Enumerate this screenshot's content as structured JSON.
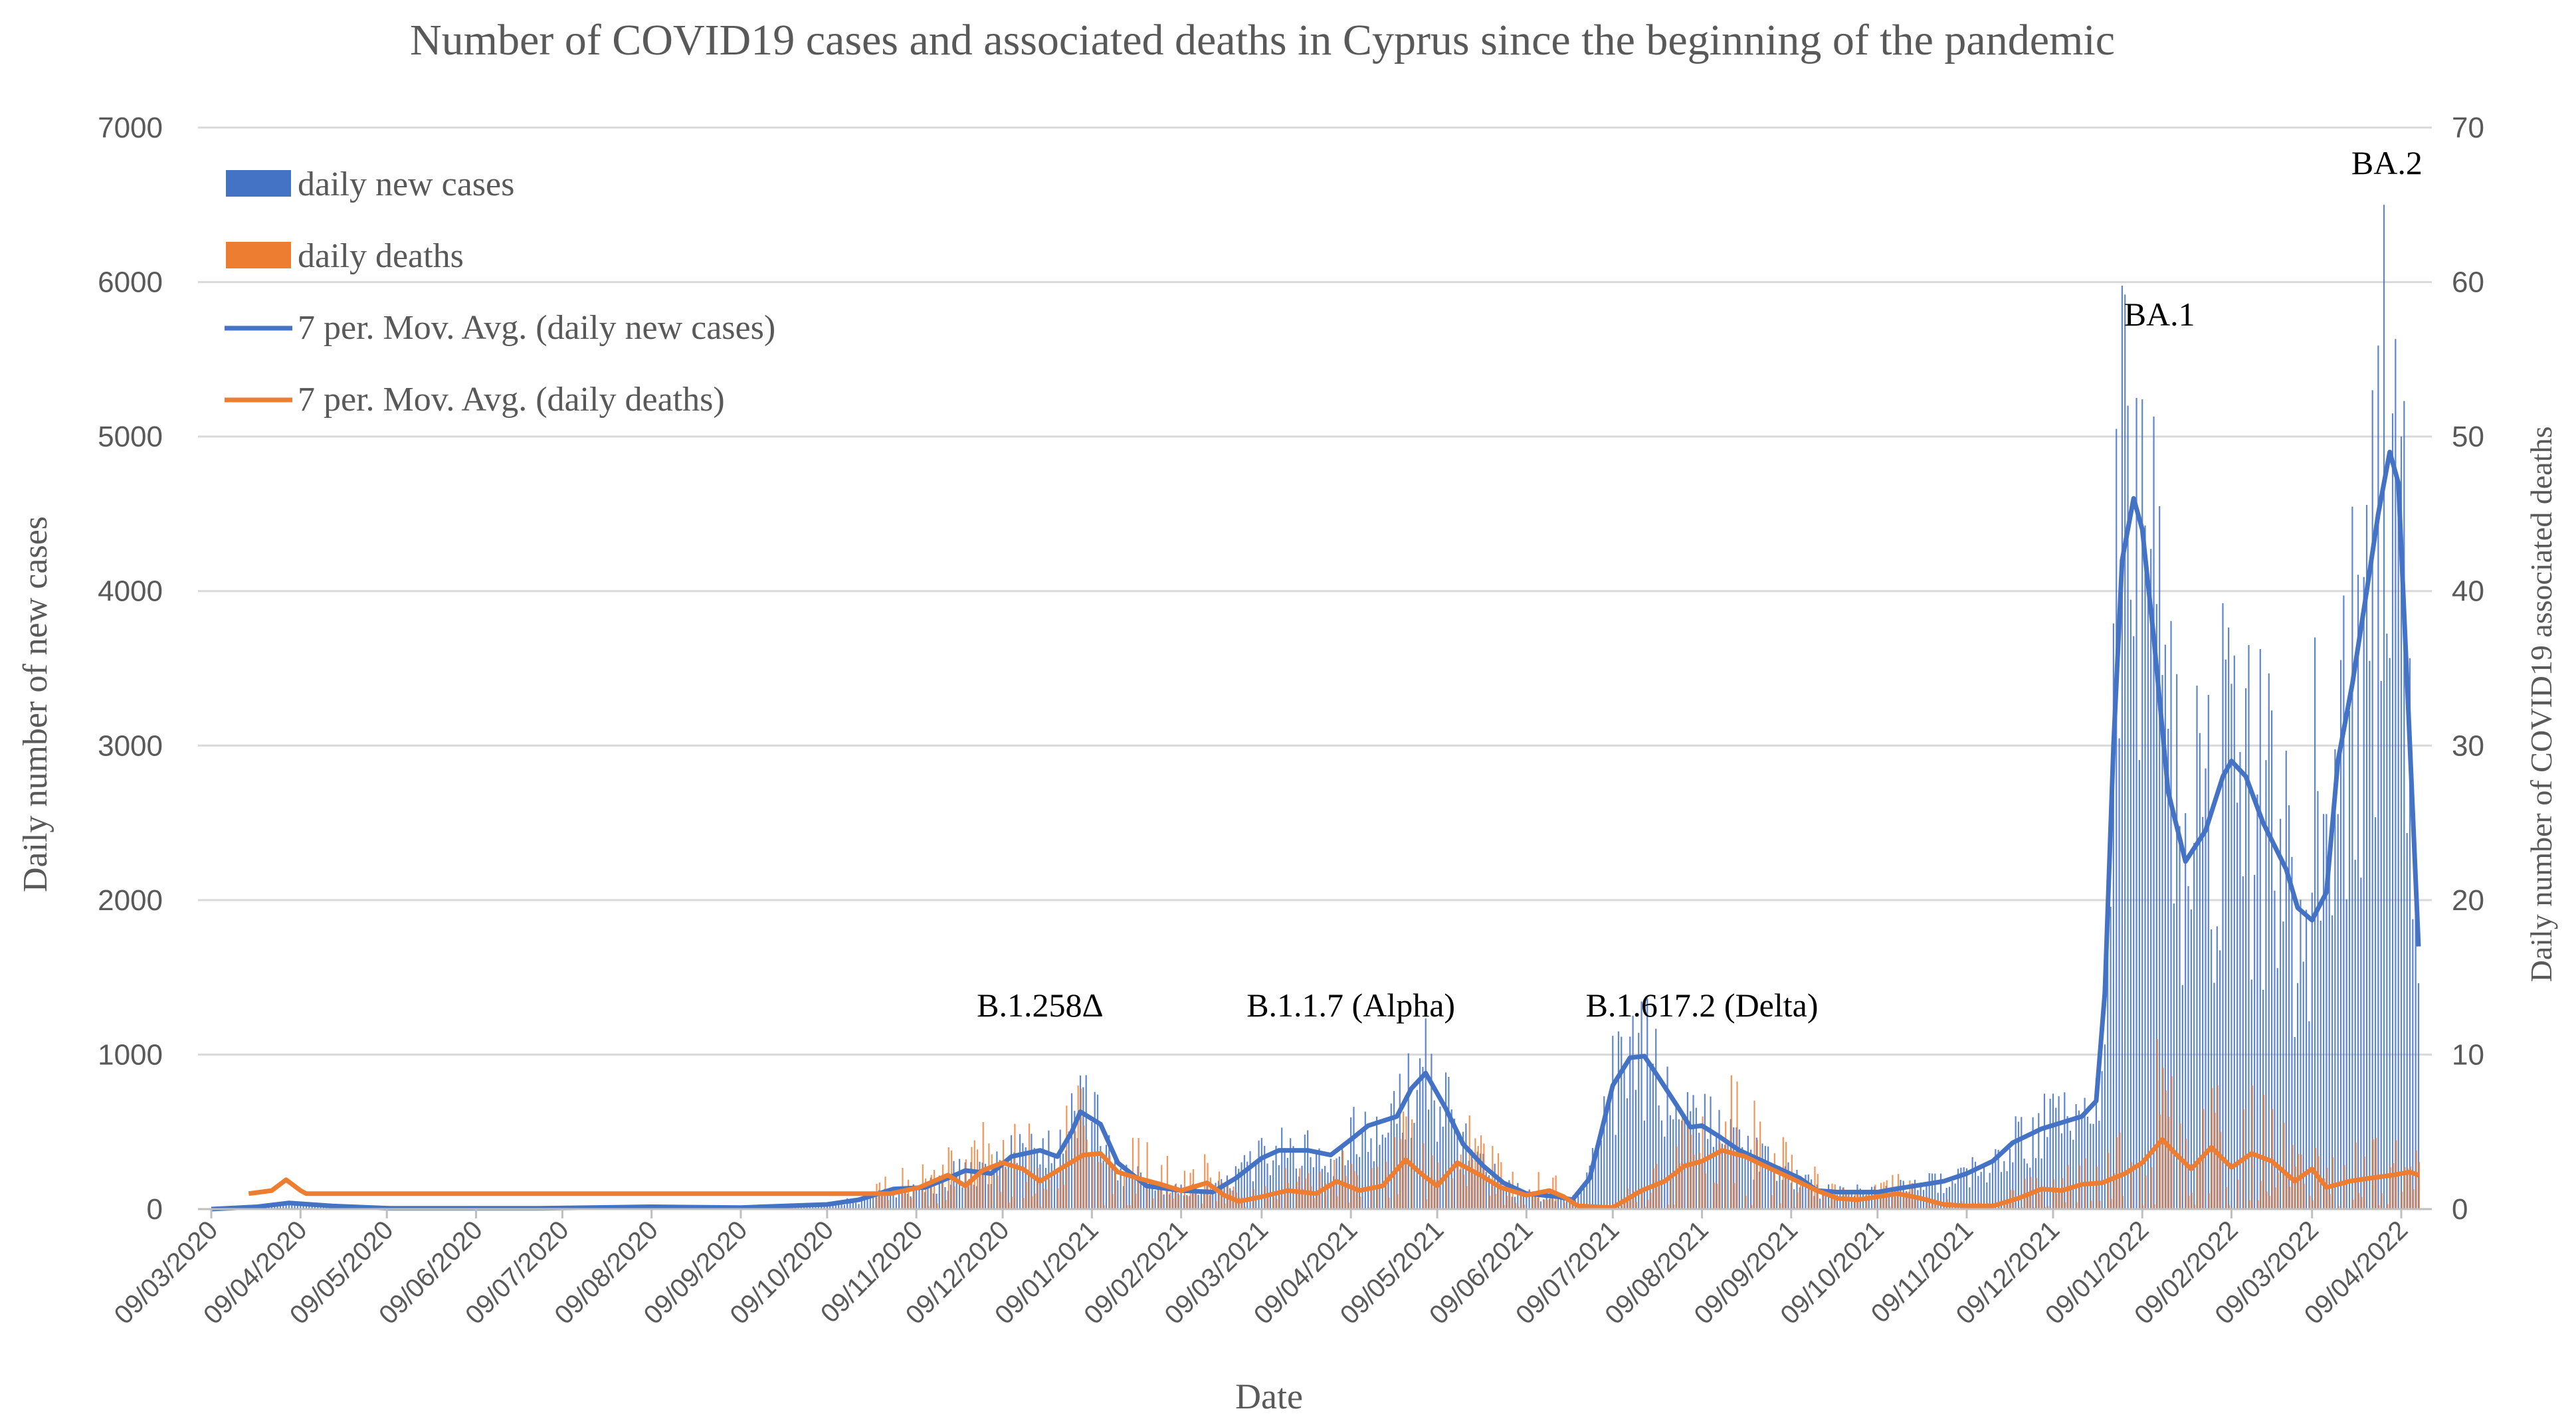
{
  "chart_data": {
    "type": "bar+line",
    "title": "Number of COVID19 cases and associated deaths in Cyprus since the beginning of the pandemic",
    "xlabel": "Date",
    "ylabel_left": "Daily number of new cases",
    "ylabel_right": "Daily number of COVID19 associated deaths",
    "ylim_left": [
      0,
      7000
    ],
    "ylim_right": [
      0,
      70
    ],
    "yticks_left": [
      "0",
      "1000",
      "2000",
      "3000",
      "4000",
      "5000",
      "6000",
      "7000"
    ],
    "yticks_right": [
      "0",
      "10",
      "20",
      "30",
      "40",
      "50",
      "60",
      "70"
    ],
    "date_start": "2020-03-09",
    "date_end": "2022-04-15",
    "gridlines": true,
    "legend_position": "top-left",
    "colors": {
      "cases": "#4472C4",
      "deaths": "#ED7D31",
      "grid": "#D9D9D9",
      "text": "#595959"
    },
    "legend": [
      {
        "label": "daily new cases",
        "kind": "bar",
        "series": "cases"
      },
      {
        "label": "daily deaths",
        "kind": "bar",
        "series": "deaths"
      },
      {
        "label": "7 per. Mov. Avg. (daily new cases)",
        "kind": "line",
        "series": "cases"
      },
      {
        "label": "7 per. Mov. Avg. (daily deaths)",
        "kind": "line",
        "series": "deaths"
      }
    ],
    "x_ticks": [
      "09/03/2020",
      "09/04/2020",
      "09/05/2020",
      "09/06/2020",
      "09/07/2020",
      "09/08/2020",
      "09/09/2020",
      "09/10/2020",
      "09/11/2020",
      "09/12/2020",
      "09/01/2021",
      "09/02/2021",
      "09/03/2021",
      "09/04/2021",
      "09/05/2021",
      "09/06/2021",
      "09/07/2021",
      "09/08/2021",
      "09/09/2021",
      "09/10/2021",
      "09/11/2021",
      "09/12/2021",
      "09/01/2022",
      "09/02/2022",
      "09/03/2022",
      "09/04/2022"
    ],
    "series_cases_ma": {
      "name": "7 per. Mov. Avg. (daily new cases)",
      "points": [
        [
          "2020-03-09",
          0
        ],
        [
          "2020-03-25",
          15
        ],
        [
          "2020-04-05",
          40
        ],
        [
          "2020-04-20",
          20
        ],
        [
          "2020-05-10",
          5
        ],
        [
          "2020-07-01",
          5
        ],
        [
          "2020-08-09",
          15
        ],
        [
          "2020-09-09",
          10
        ],
        [
          "2020-10-09",
          30
        ],
        [
          "2020-10-20",
          60
        ],
        [
          "2020-11-01",
          130
        ],
        [
          "2020-11-12",
          140
        ],
        [
          "2020-11-20",
          200
        ],
        [
          "2020-11-26",
          250
        ],
        [
          "2020-12-05",
          230
        ],
        [
          "2020-12-12",
          340
        ],
        [
          "2020-12-22",
          380
        ],
        [
          "2020-12-28",
          340
        ],
        [
          "2021-01-02",
          500
        ],
        [
          "2021-01-05",
          630
        ],
        [
          "2021-01-12",
          550
        ],
        [
          "2021-01-18",
          300
        ],
        [
          "2021-01-28",
          150
        ],
        [
          "2021-02-09",
          120
        ],
        [
          "2021-02-20",
          110
        ],
        [
          "2021-02-28",
          200
        ],
        [
          "2021-03-09",
          330
        ],
        [
          "2021-03-15",
          380
        ],
        [
          "2021-03-25",
          380
        ],
        [
          "2021-04-02",
          350
        ],
        [
          "2021-04-09",
          450
        ],
        [
          "2021-04-15",
          540
        ],
        [
          "2021-04-25",
          600
        ],
        [
          "2021-04-30",
          780
        ],
        [
          "2021-05-05",
          880
        ],
        [
          "2021-05-12",
          650
        ],
        [
          "2021-05-18",
          420
        ],
        [
          "2021-05-25",
          280
        ],
        [
          "2021-06-01",
          170
        ],
        [
          "2021-06-09",
          100
        ],
        [
          "2021-06-20",
          80
        ],
        [
          "2021-06-25",
          60
        ],
        [
          "2021-07-01",
          200
        ],
        [
          "2021-07-05",
          500
        ],
        [
          "2021-07-09",
          800
        ],
        [
          "2021-07-15",
          980
        ],
        [
          "2021-07-20",
          990
        ],
        [
          "2021-07-25",
          850
        ],
        [
          "2021-08-01",
          650
        ],
        [
          "2021-08-05",
          530
        ],
        [
          "2021-08-09",
          540
        ],
        [
          "2021-08-15",
          470
        ],
        [
          "2021-08-22",
          380
        ],
        [
          "2021-08-29",
          320
        ],
        [
          "2021-09-05",
          260
        ],
        [
          "2021-09-12",
          200
        ],
        [
          "2021-09-18",
          120
        ],
        [
          "2021-09-25",
          110
        ],
        [
          "2021-10-01",
          110
        ],
        [
          "2021-10-09",
          110
        ],
        [
          "2021-10-15",
          130
        ],
        [
          "2021-10-22",
          150
        ],
        [
          "2021-11-01",
          180
        ],
        [
          "2021-11-09",
          230
        ],
        [
          "2021-11-18",
          310
        ],
        [
          "2021-11-25",
          430
        ],
        [
          "2021-12-05",
          520
        ],
        [
          "2021-12-12",
          560
        ],
        [
          "2021-12-19",
          600
        ],
        [
          "2021-12-24",
          700
        ],
        [
          "2021-12-27",
          1400
        ],
        [
          "2021-12-30",
          3000
        ],
        [
          "2022-01-02",
          4200
        ],
        [
          "2022-01-06",
          4600
        ],
        [
          "2022-01-09",
          4400
        ],
        [
          "2022-01-13",
          3700
        ],
        [
          "2022-01-18",
          2700
        ],
        [
          "2022-01-24",
          2250
        ],
        [
          "2022-01-31",
          2450
        ],
        [
          "2022-02-06",
          2800
        ],
        [
          "2022-02-09",
          2900
        ],
        [
          "2022-02-14",
          2800
        ],
        [
          "2022-02-20",
          2500
        ],
        [
          "2022-02-28",
          2200
        ],
        [
          "2022-03-04",
          1950
        ],
        [
          "2022-03-09",
          1870
        ],
        [
          "2022-03-14",
          2050
        ],
        [
          "2022-03-18",
          2900
        ],
        [
          "2022-03-23",
          3400
        ],
        [
          "2022-03-28",
          4000
        ],
        [
          "2022-04-01",
          4500
        ],
        [
          "2022-04-05",
          4900
        ],
        [
          "2022-04-08",
          4700
        ],
        [
          "2022-04-12",
          3000
        ],
        [
          "2022-04-15",
          1700
        ]
      ]
    },
    "series_deaths_ma": {
      "name": "7 per. Mov. Avg. (daily deaths)",
      "points": [
        [
          "2020-03-22",
          1
        ],
        [
          "2020-03-30",
          1.2
        ],
        [
          "2020-04-04",
          1.9
        ],
        [
          "2020-04-09",
          1.2
        ],
        [
          "2020-04-11",
          1
        ],
        [
          "2020-10-31",
          1
        ],
        [
          "2020-11-10",
          1.4
        ],
        [
          "2020-11-20",
          2.2
        ],
        [
          "2020-11-26",
          1.5
        ],
        [
          "2020-12-02",
          2.5
        ],
        [
          "2020-12-09",
          3
        ],
        [
          "2020-12-16",
          2.6
        ],
        [
          "2020-12-22",
          1.8
        ],
        [
          "2020-12-29",
          2.6
        ],
        [
          "2021-01-06",
          3.5
        ],
        [
          "2021-01-12",
          3.6
        ],
        [
          "2021-01-18",
          2.4
        ],
        [
          "2021-01-25",
          2
        ],
        [
          "2021-02-02",
          1.6
        ],
        [
          "2021-02-09",
          1.2
        ],
        [
          "2021-02-18",
          1.7
        ],
        [
          "2021-02-24",
          0.9
        ],
        [
          "2021-03-01",
          0.5
        ],
        [
          "2021-03-09",
          0.8
        ],
        [
          "2021-03-18",
          1.2
        ],
        [
          "2021-03-28",
          1
        ],
        [
          "2021-04-04",
          1.8
        ],
        [
          "2021-04-12",
          1.2
        ],
        [
          "2021-04-20",
          1.5
        ],
        [
          "2021-04-28",
          3.2
        ],
        [
          "2021-05-04",
          2.2
        ],
        [
          "2021-05-09",
          1.5
        ],
        [
          "2021-05-16",
          3
        ],
        [
          "2021-05-24",
          2.2
        ],
        [
          "2021-05-31",
          1.4
        ],
        [
          "2021-06-09",
          0.9
        ],
        [
          "2021-06-17",
          1.2
        ],
        [
          "2021-06-22",
          0.8
        ],
        [
          "2021-06-27",
          0.2
        ],
        [
          "2021-07-09",
          0.1
        ],
        [
          "2021-07-19",
          1.2
        ],
        [
          "2021-07-27",
          1.8
        ],
        [
          "2021-08-03",
          2.8
        ],
        [
          "2021-08-09",
          3.1
        ],
        [
          "2021-08-16",
          3.8
        ],
        [
          "2021-08-24",
          3.4
        ],
        [
          "2021-09-02",
          2.6
        ],
        [
          "2021-09-09",
          2
        ],
        [
          "2021-09-18",
          1.2
        ],
        [
          "2021-09-25",
          0.7
        ],
        [
          "2021-10-02",
          0.6
        ],
        [
          "2021-10-09",
          0.8
        ],
        [
          "2021-10-16",
          1
        ],
        [
          "2021-10-24",
          0.7
        ],
        [
          "2021-11-01",
          0.3
        ],
        [
          "2021-11-09",
          0.2
        ],
        [
          "2021-11-18",
          0.2
        ],
        [
          "2021-11-27",
          0.7
        ],
        [
          "2021-12-05",
          1.3
        ],
        [
          "2021-12-12",
          1.2
        ],
        [
          "2021-12-19",
          1.6
        ],
        [
          "2021-12-26",
          1.7
        ],
        [
          "2022-01-03",
          2.3
        ],
        [
          "2022-01-09",
          3
        ],
        [
          "2022-01-16",
          4.5
        ],
        [
          "2022-01-21",
          3.5
        ],
        [
          "2022-01-26",
          2.6
        ],
        [
          "2022-02-02",
          4
        ],
        [
          "2022-02-09",
          2.7
        ],
        [
          "2022-02-16",
          3.6
        ],
        [
          "2022-02-23",
          3.1
        ],
        [
          "2022-03-03",
          1.8
        ],
        [
          "2022-03-09",
          2.6
        ],
        [
          "2022-03-14",
          1.4
        ],
        [
          "2022-03-22",
          1.8
        ],
        [
          "2022-03-29",
          2
        ],
        [
          "2022-04-06",
          2.2
        ],
        [
          "2022-04-12",
          2.4
        ],
        [
          "2022-04-15",
          2.2
        ]
      ]
    },
    "series_cases_daily_peaks": [
      [
        "2021-01-02",
        750
      ],
      [
        "2021-05-04",
        920
      ],
      [
        "2021-07-11",
        1150
      ],
      [
        "2021-12-31",
        5050
      ],
      [
        "2022-01-04",
        5200
      ],
      [
        "2022-01-07",
        5250
      ],
      [
        "2022-02-09",
        3400
      ],
      [
        "2022-03-10",
        3700
      ],
      [
        "2022-03-30",
        5300
      ],
      [
        "2022-04-03",
        6500
      ],
      [
        "2022-04-06",
        5150
      ]
    ],
    "series_deaths_daily_peaks": [
      [
        "2020-11-20",
        4
      ],
      [
        "2021-01-04",
        8
      ],
      [
        "2021-04-28",
        6
      ],
      [
        "2021-08-09",
        6
      ],
      [
        "2022-01-14",
        11
      ],
      [
        "2022-02-16",
        8
      ]
    ]
  },
  "annotations": [
    {
      "label": "B.1.258Δ",
      "date": "2020-12-22"
    },
    {
      "label": "B.1.1.7 (Alpha)",
      "date": "2021-04-09"
    },
    {
      "label": "B.1.617.2 (Delta)",
      "date": "2021-08-09"
    },
    {
      "label": "BA.1",
      "date": "2022-01-15"
    },
    {
      "label": "BA.2",
      "date": "2022-04-04"
    }
  ]
}
